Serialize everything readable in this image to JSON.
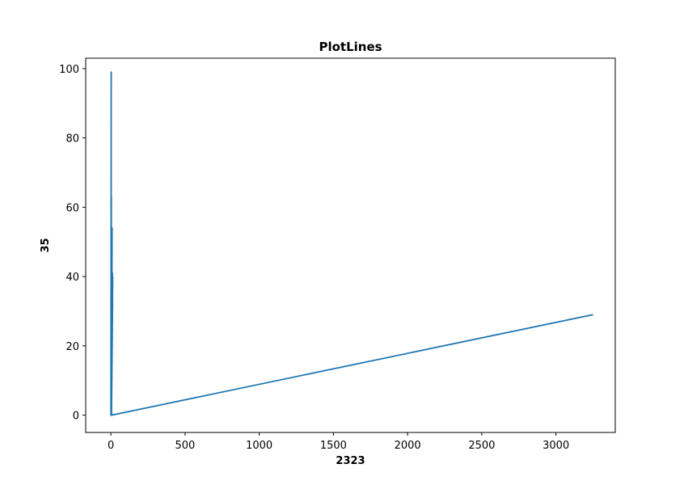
{
  "chart_data": {
    "type": "line",
    "title": "PlotLines",
    "xlabel": "2323",
    "ylabel": "35",
    "xlim": [
      -170,
      3400
    ],
    "ylim": [
      -5,
      103
    ],
    "x_ticks": [
      0,
      500,
      1000,
      1500,
      2000,
      2500,
      3000
    ],
    "y_ticks": [
      0,
      20,
      40,
      60,
      80,
      100
    ],
    "grid": false,
    "legend": "none",
    "series": [
      {
        "color": "#1f77b4",
        "x": [
          0,
          2,
          1,
          3,
          0,
          5,
          2,
          4,
          1,
          6,
          0,
          7,
          3,
          8,
          1,
          9,
          2,
          10,
          0,
          11,
          4,
          12,
          2,
          5,
          3250
        ],
        "y": [
          0,
          99,
          2,
          63,
          1,
          54,
          0,
          48,
          3,
          53,
          0,
          45,
          1,
          54,
          2,
          39,
          0,
          41,
          1,
          32,
          0,
          40,
          3,
          0,
          29
        ]
      }
    ]
  }
}
